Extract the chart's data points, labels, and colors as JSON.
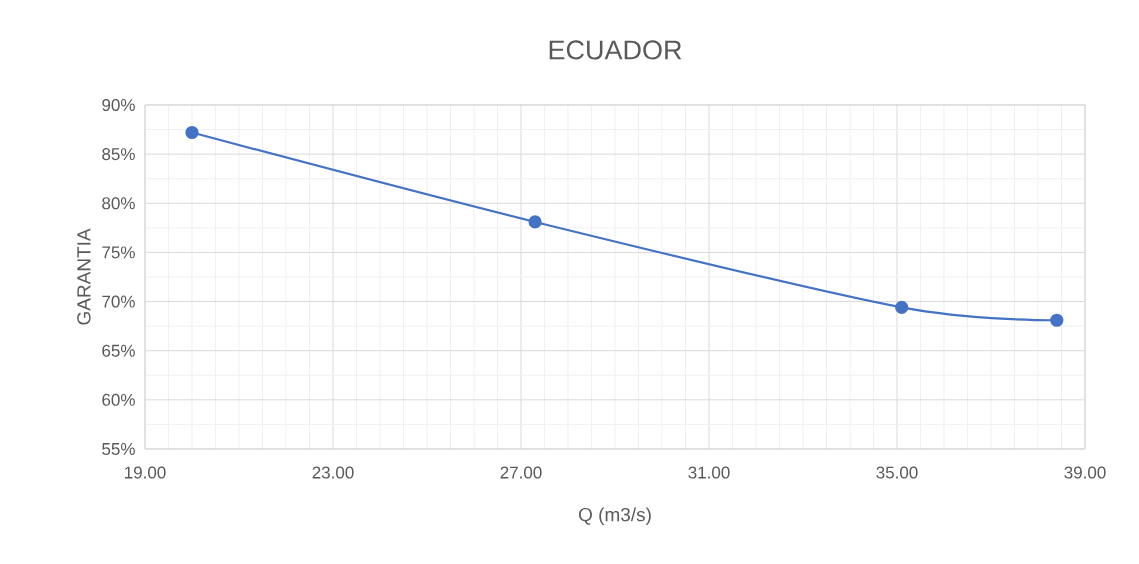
{
  "chart_data": {
    "type": "line",
    "title": "ECUADOR",
    "xlabel": "Q (m3/s)",
    "ylabel": "GARANTIA",
    "x": [
      20.0,
      27.3,
      35.1,
      38.4
    ],
    "series": [
      {
        "color": "#4472c4",
        "values": [
          87.2,
          78.1,
          69.4,
          68.1
        ]
      }
    ],
    "xlim": [
      19,
      39
    ],
    "ylim": [
      55,
      90
    ],
    "xticks": [
      {
        "value": 19,
        "label": "19.00"
      },
      {
        "value": 23,
        "label": "23.00"
      },
      {
        "value": 27,
        "label": "27.00"
      },
      {
        "value": 31,
        "label": "31.00"
      },
      {
        "value": 35,
        "label": "35.00"
      },
      {
        "value": 39,
        "label": "39.00"
      }
    ],
    "yticks": [
      {
        "value": 55,
        "label": "55%"
      },
      {
        "value": 60,
        "label": "60%"
      },
      {
        "value": 65,
        "label": "65%"
      },
      {
        "value": 70,
        "label": "70%"
      },
      {
        "value": 75,
        "label": "75%"
      },
      {
        "value": 80,
        "label": "80%"
      },
      {
        "value": 85,
        "label": "85%"
      },
      {
        "value": 90,
        "label": "90%"
      }
    ],
    "grid": true,
    "marker": "circle",
    "line_style": "solid"
  }
}
